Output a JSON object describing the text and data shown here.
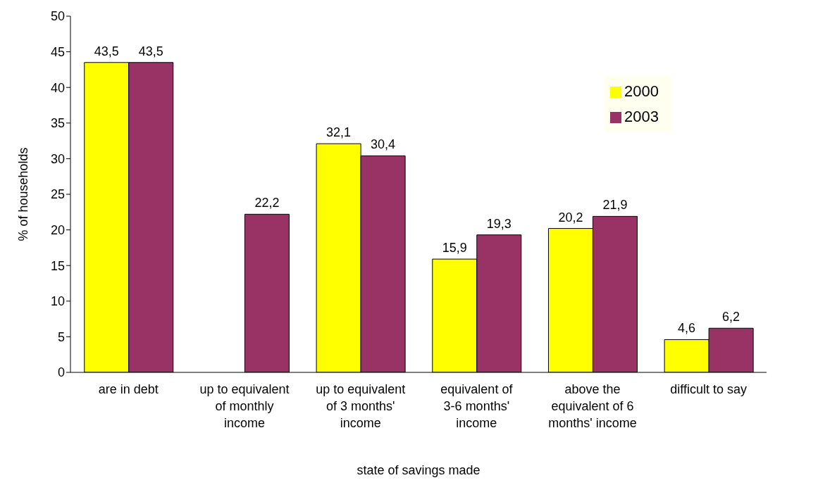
{
  "chart_data": {
    "type": "bar",
    "xlabel": "state of savings made",
    "ylabel": "% of households",
    "categories": [
      "are in debt",
      "up to equivalent of monthly income",
      "up to equivalent of 3 months' income",
      "equivalent of 3-6 months' income",
      "above the equivalent of 6 months' income",
      "difficult to say"
    ],
    "series": [
      {
        "name": "2000",
        "color": "#ffff00",
        "values": [
          43.5,
          null,
          32.1,
          15.9,
          20.2,
          4.6
        ],
        "value_labels": [
          "43,5",
          null,
          "32,1",
          "15,9",
          "20,2",
          "4,6"
        ]
      },
      {
        "name": "2003",
        "color": "#993366",
        "values": [
          43.5,
          22.2,
          30.4,
          19.3,
          21.9,
          6.2
        ],
        "value_labels": [
          "43,5",
          "22,2",
          "30,4",
          "19,3",
          "21,9",
          "6,2"
        ]
      }
    ],
    "ylim": [
      0,
      50
    ],
    "yticks": [
      0,
      5,
      10,
      15,
      20,
      25,
      30,
      35,
      40,
      45,
      50
    ],
    "grid": false,
    "legend": "top right"
  }
}
